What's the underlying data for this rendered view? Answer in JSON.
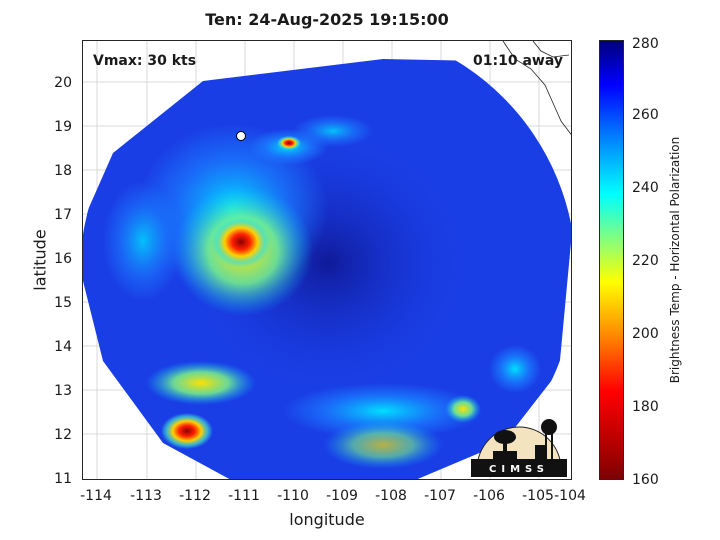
{
  "title": "Ten: 24-Aug-2025 19:15:00",
  "vmax": "Vmax: 30 kts",
  "away": "01:10 away",
  "xlabel": "longitude",
  "ylabel": "latitude",
  "xticks": [
    "-114",
    "-113",
    "-112",
    "-111",
    "-110",
    "-109",
    "-108",
    "-107",
    "-106",
    "-105",
    "-104"
  ],
  "yticks": [
    "11",
    "12",
    "13",
    "14",
    "15",
    "16",
    "17",
    "18",
    "19",
    "20"
  ],
  "colorbar": {
    "label": "Brightness Temp - Horizontal Polarization",
    "ticks": [
      "160",
      "180",
      "200",
      "220",
      "240",
      "260",
      "280"
    ],
    "min": 160,
    "max": 280
  },
  "logo": "CIMSS",
  "colors": {
    "background_swath": "#1a3ee6",
    "cold_core": "#c00000",
    "warm_band": "#ffd000"
  }
}
